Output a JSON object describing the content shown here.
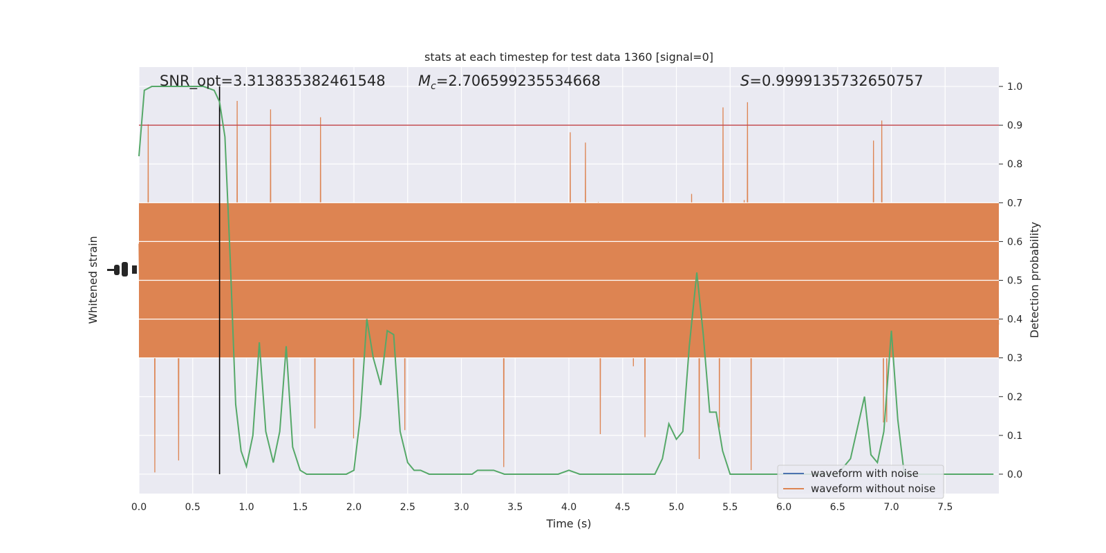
{
  "chart_data": {
    "type": "line",
    "title": "stats at each timestep for test data 1360 [signal=0]",
    "xlabel": "Time (s)",
    "ylabel_left": "Whitened strain",
    "ylabel_right": "Detection probability",
    "xlim": [
      0,
      8
    ],
    "ylim_right": [
      -0.05,
      1.05
    ],
    "x_ticks": [
      0,
      0.5,
      1,
      1.5,
      2,
      2.5,
      3,
      3.5,
      4,
      4.5,
      5,
      5.5,
      6,
      6.5,
      7,
      7.5
    ],
    "x_tick_labels": [
      "0.0",
      "0.5",
      "1.0",
      "1.5",
      "2.0",
      "2.5",
      "3.0",
      "3.5",
      "4.0",
      "4.5",
      "5.0",
      "5.5",
      "6.0",
      "6.5",
      "7.0",
      "7.5"
    ],
    "y_right_ticks": [
      0,
      0.1,
      0.2,
      0.3,
      0.4,
      0.5,
      0.6,
      0.7,
      0.8,
      0.9,
      1.0
    ],
    "y_right_tick_labels": [
      "0.0",
      "0.1",
      "0.2",
      "0.3",
      "0.4",
      "0.5",
      "0.6",
      "0.7",
      "0.8",
      "0.9",
      "1.0"
    ],
    "grid": true,
    "legend_placement": "lower-right",
    "annotations": {
      "snr": "SNR_opt=3.313835382461548",
      "mc_symbol": "M",
      "mc_subscript": "c",
      "mc_value": "=2.706599235534668",
      "s_symbol": "S",
      "s_value": "=0.9999135732650757"
    },
    "threshold": 0.9,
    "marker_time": 0.75,
    "series": [
      {
        "name": "waveform with noise",
        "color": "#4c72b0"
      },
      {
        "name": "waveform without noise",
        "color": "#dd8452",
        "display_range_prob_units": [
          0.0,
          1.0
        ]
      },
      {
        "color": "#55a868",
        "x": [
          0,
          0.05,
          0.12,
          0.2,
          0.3,
          0.4,
          0.5,
          0.6,
          0.7,
          0.75,
          0.8,
          0.85,
          0.9,
          0.95,
          1.0,
          1.06,
          1.12,
          1.18,
          1.25,
          1.31,
          1.37,
          1.43,
          1.5,
          1.56,
          1.62,
          1.68,
          1.75,
          1.81,
          1.87,
          1.93,
          2.0,
          2.06,
          2.12,
          2.18,
          2.25,
          2.31,
          2.37,
          2.43,
          2.5,
          2.56,
          2.62,
          2.7,
          2.8,
          2.9,
          3.0,
          3.1,
          3.15,
          3.2,
          3.25,
          3.3,
          3.4,
          3.5,
          3.6,
          3.7,
          3.8,
          3.9,
          4.0,
          4.1,
          4.2,
          4.3,
          4.4,
          4.5,
          4.6,
          4.7,
          4.75,
          4.8,
          4.87,
          4.93,
          5.0,
          5.06,
          5.12,
          5.19,
          5.25,
          5.31,
          5.37,
          5.43,
          5.5,
          5.56,
          5.62,
          5.7,
          5.8,
          5.9,
          6.0,
          6.1,
          6.2,
          6.3,
          6.4,
          6.5,
          6.62,
          6.75,
          6.81,
          6.87,
          6.93,
          7.0,
          7.06,
          7.12,
          7.2,
          7.3,
          7.4,
          7.5,
          7.6,
          7.7,
          7.8,
          7.9,
          7.95
        ],
        "values": [
          0.82,
          0.99,
          1.0,
          1.0,
          1.0,
          1.0,
          1.0,
          1.0,
          0.99,
          0.96,
          0.87,
          0.55,
          0.18,
          0.06,
          0.02,
          0.1,
          0.34,
          0.11,
          0.03,
          0.11,
          0.33,
          0.07,
          0.01,
          0.0,
          0.0,
          0.0,
          0.0,
          0.0,
          0.0,
          0.0,
          0.01,
          0.15,
          0.4,
          0.3,
          0.23,
          0.37,
          0.36,
          0.11,
          0.03,
          0.01,
          0.01,
          0.0,
          0.0,
          0.0,
          0.0,
          0.0,
          0.01,
          0.01,
          0.01,
          0.01,
          0.0,
          0.0,
          0.0,
          0.0,
          0.0,
          0.0,
          0.01,
          0.0,
          0.0,
          0.0,
          0.0,
          0.0,
          0.0,
          0.0,
          0.0,
          0.0,
          0.04,
          0.13,
          0.09,
          0.11,
          0.33,
          0.52,
          0.36,
          0.16,
          0.16,
          0.06,
          0.0,
          0.0,
          0.0,
          0.0,
          0.0,
          0.0,
          0.0,
          0.0,
          0.0,
          0.0,
          0.0,
          0.0,
          0.04,
          0.2,
          0.05,
          0.03,
          0.11,
          0.37,
          0.14,
          0.0,
          0.0,
          0.0,
          0.0,
          0.0,
          0.0,
          0.0,
          0.0,
          0.0,
          0.0
        ]
      }
    ]
  }
}
